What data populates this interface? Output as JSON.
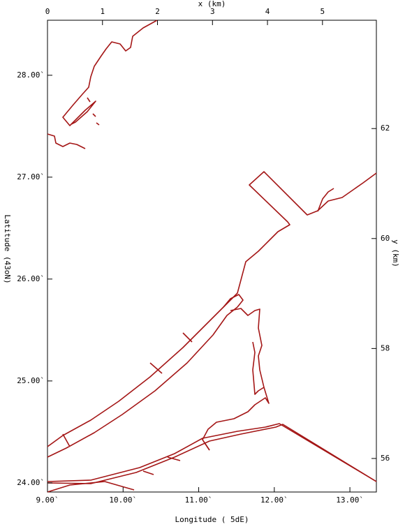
{
  "chart_data": {
    "type": "map",
    "x_label": "Longitude (  5dE)",
    "y_label": "Latitude (43oN)",
    "x2_label": "x (km)",
    "y2_label": "y (km)",
    "xlim": [
      9,
      13.35
    ],
    "xticks": [
      {
        "value": 9,
        "label": "9.00`"
      },
      {
        "value": 10,
        "label": "10.00`"
      },
      {
        "value": 11,
        "label": "11.00`"
      },
      {
        "value": 12,
        "label": "12.00`"
      },
      {
        "value": 13,
        "label": "13.00`"
      }
    ],
    "ylim": [
      23.91,
      28.54
    ],
    "yticks": [
      {
        "value": 24,
        "label": "24.00`"
      },
      {
        "value": 25,
        "label": "25.00`"
      },
      {
        "value": 26,
        "label": "26.00`"
      },
      {
        "value": 27,
        "label": "27.00`"
      },
      {
        "value": 28,
        "label": "28.00`"
      }
    ],
    "x2lim": [
      0,
      5.98
    ],
    "x2ticks": [
      0,
      1,
      2,
      3,
      4,
      5
    ],
    "y2lim": [
      55.39,
      63.97
    ],
    "y2ticks": [
      56,
      58,
      60,
      62
    ]
  }
}
